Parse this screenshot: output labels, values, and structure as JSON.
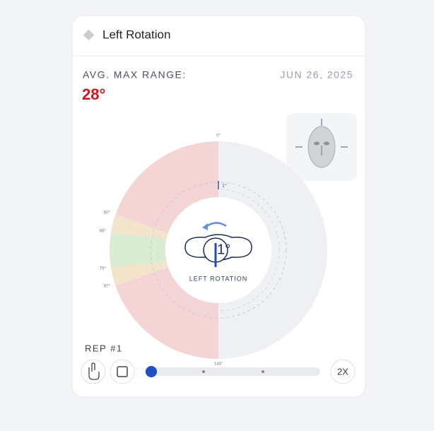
{
  "header": {
    "title": "Left Rotation"
  },
  "summary": {
    "label": "AVG. MAX RANGE:",
    "date": "JUN 26, 2025",
    "value": "28°"
  },
  "dial": {
    "top_label": "0°",
    "marker_label": "1°",
    "side_labels": [
      "60°",
      "66°",
      "79°",
      "87°"
    ],
    "bottom_label": "144°",
    "current": "1°",
    "caption": "LEFT ROTATION"
  },
  "controls": {
    "rep": "REP #1",
    "speed": "2X"
  }
}
